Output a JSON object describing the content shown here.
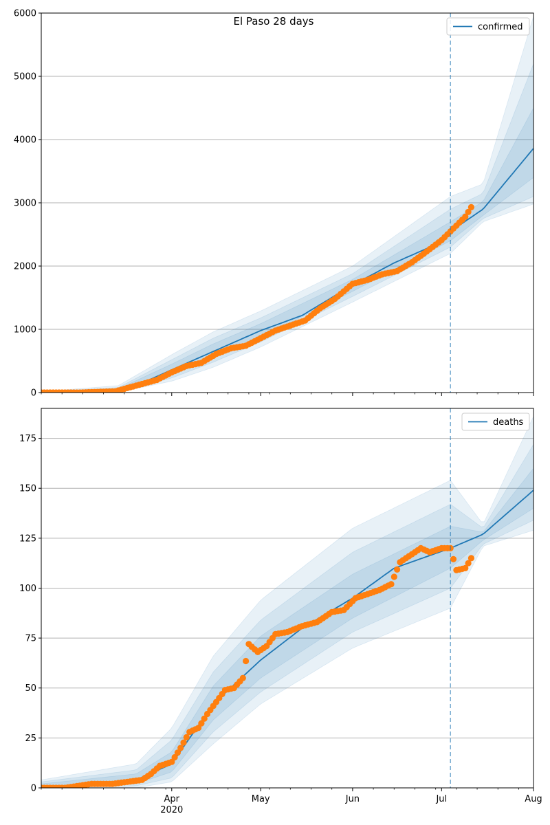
{
  "title": "El Paso 28 days",
  "colors": {
    "line": "#1f77b4",
    "points": "#ff7f0e",
    "band": "#1f77b4",
    "grid": "#b0b0b0",
    "vline": "#1f77b4"
  },
  "x_axis": {
    "start": "2020-02-17",
    "end": "2020-08-01",
    "major_ticks": [
      {
        "date": "2020-04-01",
        "label": "Apr",
        "sublabel": "2020"
      },
      {
        "date": "2020-05-01",
        "label": "May",
        "sublabel": ""
      },
      {
        "date": "2020-06-01",
        "label": "Jun",
        "sublabel": ""
      },
      {
        "date": "2020-07-01",
        "label": "Jul",
        "sublabel": ""
      },
      {
        "date": "2020-08-01",
        "label": "Aug",
        "sublabel": ""
      }
    ],
    "forecast_start": "2020-07-04"
  },
  "chart_data": [
    {
      "type": "line",
      "name": "confirmed",
      "legend": "top-right",
      "grid": "y",
      "ylim": [
        0,
        6000
      ],
      "yticks": [
        0,
        1000,
        2000,
        3000,
        4000,
        5000,
        6000
      ],
      "ytick_labels": [
        "0",
        "1000",
        "2000",
        "3000",
        "4000",
        "5000",
        "6000"
      ],
      "median": [
        {
          "date": "2020-02-17",
          "value": 0
        },
        {
          "date": "2020-03-06",
          "value": 5
        },
        {
          "date": "2020-03-14",
          "value": 30
        },
        {
          "date": "2020-03-22",
          "value": 150
        },
        {
          "date": "2020-04-01",
          "value": 360
        },
        {
          "date": "2020-04-15",
          "value": 650
        },
        {
          "date": "2020-05-01",
          "value": 980
        },
        {
          "date": "2020-05-15",
          "value": 1220
        },
        {
          "date": "2020-06-01",
          "value": 1700
        },
        {
          "date": "2020-06-15",
          "value": 2050
        },
        {
          "date": "2020-07-01",
          "value": 2380
        },
        {
          "date": "2020-07-04",
          "value": 2550
        },
        {
          "date": "2020-07-15",
          "value": 2900
        },
        {
          "date": "2020-08-01",
          "value": 3860
        }
      ],
      "bands": [
        {
          "upper": [
            {
              "date": "2020-02-17",
              "value": 15
            },
            {
              "date": "2020-03-14",
              "value": 110
            },
            {
              "date": "2020-04-01",
              "value": 600
            },
            {
              "date": "2020-04-15",
              "value": 960
            },
            {
              "date": "2020-05-01",
              "value": 1290
            },
            {
              "date": "2020-06-01",
              "value": 2000
            },
            {
              "date": "2020-07-04",
              "value": 3100
            },
            {
              "date": "2020-07-15",
              "value": 3300
            },
            {
              "date": "2020-08-01",
              "value": 5950
            }
          ],
          "lower": [
            {
              "date": "2020-02-17",
              "value": 0
            },
            {
              "date": "2020-03-14",
              "value": 5
            },
            {
              "date": "2020-04-01",
              "value": 180
            },
            {
              "date": "2020-04-15",
              "value": 400
            },
            {
              "date": "2020-05-01",
              "value": 720
            },
            {
              "date": "2020-06-01",
              "value": 1430
            },
            {
              "date": "2020-07-04",
              "value": 2200
            },
            {
              "date": "2020-07-15",
              "value": 2700
            },
            {
              "date": "2020-08-01",
              "value": 2980
            }
          ]
        },
        {
          "upper": [
            {
              "date": "2020-02-17",
              "value": 10
            },
            {
              "date": "2020-03-14",
              "value": 80
            },
            {
              "date": "2020-04-01",
              "value": 520
            },
            {
              "date": "2020-04-15",
              "value": 860
            },
            {
              "date": "2020-05-01",
              "value": 1180
            },
            {
              "date": "2020-06-01",
              "value": 1880
            },
            {
              "date": "2020-07-04",
              "value": 2900
            },
            {
              "date": "2020-07-15",
              "value": 3150
            },
            {
              "date": "2020-08-01",
              "value": 5200
            }
          ],
          "lower": [
            {
              "date": "2020-02-17",
              "value": 0
            },
            {
              "date": "2020-03-14",
              "value": 10
            },
            {
              "date": "2020-04-01",
              "value": 230
            },
            {
              "date": "2020-04-15",
              "value": 480
            },
            {
              "date": "2020-05-01",
              "value": 800
            },
            {
              "date": "2020-06-01",
              "value": 1520
            },
            {
              "date": "2020-07-04",
              "value": 2300
            },
            {
              "date": "2020-07-15",
              "value": 2750
            },
            {
              "date": "2020-08-01",
              "value": 3100
            }
          ]
        },
        {
          "upper": [
            {
              "date": "2020-02-17",
              "value": 6
            },
            {
              "date": "2020-03-14",
              "value": 60
            },
            {
              "date": "2020-04-01",
              "value": 450
            },
            {
              "date": "2020-04-15",
              "value": 770
            },
            {
              "date": "2020-05-01",
              "value": 1090
            },
            {
              "date": "2020-06-01",
              "value": 1790
            },
            {
              "date": "2020-07-04",
              "value": 2700
            },
            {
              "date": "2020-07-15",
              "value": 3020
            },
            {
              "date": "2020-08-01",
              "value": 4500
            }
          ],
          "lower": [
            {
              "date": "2020-02-17",
              "value": 0
            },
            {
              "date": "2020-03-14",
              "value": 15
            },
            {
              "date": "2020-04-01",
              "value": 280
            },
            {
              "date": "2020-04-15",
              "value": 550
            },
            {
              "date": "2020-05-01",
              "value": 870
            },
            {
              "date": "2020-06-01",
              "value": 1600
            },
            {
              "date": "2020-07-04",
              "value": 2400
            },
            {
              "date": "2020-07-15",
              "value": 2800
            },
            {
              "date": "2020-08-01",
              "value": 3400
            }
          ]
        }
      ],
      "points": [
        {
          "date": "2020-02-17",
          "value": 0
        },
        {
          "date": "2020-03-01",
          "value": 0
        },
        {
          "date": "2020-03-13",
          "value": 20
        },
        {
          "date": "2020-03-20",
          "value": 110
        },
        {
          "date": "2020-03-27",
          "value": 200
        },
        {
          "date": "2020-04-01",
          "value": 320
        },
        {
          "date": "2020-04-06",
          "value": 420
        },
        {
          "date": "2020-04-11",
          "value": 470
        },
        {
          "date": "2020-04-16",
          "value": 610
        },
        {
          "date": "2020-04-21",
          "value": 700
        },
        {
          "date": "2020-04-26",
          "value": 740
        },
        {
          "date": "2020-05-01",
          "value": 860
        },
        {
          "date": "2020-05-06",
          "value": 980
        },
        {
          "date": "2020-05-11",
          "value": 1060
        },
        {
          "date": "2020-05-16",
          "value": 1140
        },
        {
          "date": "2020-05-21",
          "value": 1330
        },
        {
          "date": "2020-05-26",
          "value": 1480
        },
        {
          "date": "2020-06-01",
          "value": 1720
        },
        {
          "date": "2020-06-06",
          "value": 1780
        },
        {
          "date": "2020-06-11",
          "value": 1870
        },
        {
          "date": "2020-06-16",
          "value": 1920
        },
        {
          "date": "2020-06-21",
          "value": 2060
        },
        {
          "date": "2020-06-26",
          "value": 2230
        },
        {
          "date": "2020-07-01",
          "value": 2410
        },
        {
          "date": "2020-07-06",
          "value": 2640
        },
        {
          "date": "2020-07-09",
          "value": 2780
        },
        {
          "date": "2020-07-11",
          "value": 2930
        }
      ]
    },
    {
      "type": "line",
      "name": "deaths",
      "legend": "top-right",
      "grid": "y",
      "ylim": [
        0,
        190
      ],
      "yticks": [
        0,
        25,
        50,
        75,
        100,
        125,
        150,
        175
      ],
      "ytick_labels": [
        "0",
        "25",
        "50",
        "75",
        "100",
        "125",
        "150",
        "175"
      ],
      "median": [
        {
          "date": "2020-02-17",
          "value": 0
        },
        {
          "date": "2020-03-10",
          "value": 2
        },
        {
          "date": "2020-03-20",
          "value": 4
        },
        {
          "date": "2020-04-01",
          "value": 12
        },
        {
          "date": "2020-04-15",
          "value": 42
        },
        {
          "date": "2020-05-01",
          "value": 64
        },
        {
          "date": "2020-05-15",
          "value": 80
        },
        {
          "date": "2020-06-01",
          "value": 95
        },
        {
          "date": "2020-06-15",
          "value": 110
        },
        {
          "date": "2020-07-04",
          "value": 120
        },
        {
          "date": "2020-07-15",
          "value": 127
        },
        {
          "date": "2020-08-01",
          "value": 149
        }
      ],
      "bands": [
        {
          "upper": [
            {
              "date": "2020-02-17",
              "value": 4
            },
            {
              "date": "2020-03-20",
              "value": 12
            },
            {
              "date": "2020-04-01",
              "value": 30
            },
            {
              "date": "2020-04-15",
              "value": 66
            },
            {
              "date": "2020-05-01",
              "value": 94
            },
            {
              "date": "2020-06-01",
              "value": 130
            },
            {
              "date": "2020-07-04",
              "value": 154
            },
            {
              "date": "2020-07-15",
              "value": 132
            },
            {
              "date": "2020-08-01",
              "value": 186
            }
          ],
          "lower": [
            {
              "date": "2020-02-17",
              "value": 0
            },
            {
              "date": "2020-03-20",
              "value": 0
            },
            {
              "date": "2020-04-01",
              "value": 3
            },
            {
              "date": "2020-04-15",
              "value": 22
            },
            {
              "date": "2020-05-01",
              "value": 42
            },
            {
              "date": "2020-06-01",
              "value": 70
            },
            {
              "date": "2020-07-04",
              "value": 90
            },
            {
              "date": "2020-07-15",
              "value": 121
            },
            {
              "date": "2020-08-01",
              "value": 129
            }
          ]
        },
        {
          "upper": [
            {
              "date": "2020-02-17",
              "value": 3
            },
            {
              "date": "2020-03-20",
              "value": 9
            },
            {
              "date": "2020-04-01",
              "value": 24
            },
            {
              "date": "2020-04-15",
              "value": 58
            },
            {
              "date": "2020-05-01",
              "value": 84
            },
            {
              "date": "2020-06-01",
              "value": 118
            },
            {
              "date": "2020-07-04",
              "value": 142
            },
            {
              "date": "2020-07-15",
              "value": 130
            },
            {
              "date": "2020-08-01",
              "value": 172
            }
          ],
          "lower": [
            {
              "date": "2020-02-17",
              "value": 0
            },
            {
              "date": "2020-03-20",
              "value": 1
            },
            {
              "date": "2020-04-01",
              "value": 5
            },
            {
              "date": "2020-04-15",
              "value": 28
            },
            {
              "date": "2020-05-01",
              "value": 48
            },
            {
              "date": "2020-06-01",
              "value": 78
            },
            {
              "date": "2020-07-04",
              "value": 100
            },
            {
              "date": "2020-07-15",
              "value": 122
            },
            {
              "date": "2020-08-01",
              "value": 134
            }
          ]
        },
        {
          "upper": [
            {
              "date": "2020-02-17",
              "value": 2
            },
            {
              "date": "2020-03-20",
              "value": 7
            },
            {
              "date": "2020-04-01",
              "value": 18
            },
            {
              "date": "2020-04-15",
              "value": 51
            },
            {
              "date": "2020-05-01",
              "value": 76
            },
            {
              "date": "2020-06-01",
              "value": 107
            },
            {
              "date": "2020-07-04",
              "value": 131
            },
            {
              "date": "2020-07-15",
              "value": 128
            },
            {
              "date": "2020-08-01",
              "value": 160
            }
          ],
          "lower": [
            {
              "date": "2020-02-17",
              "value": 0
            },
            {
              "date": "2020-03-20",
              "value": 2
            },
            {
              "date": "2020-04-01",
              "value": 8
            },
            {
              "date": "2020-04-15",
              "value": 34
            },
            {
              "date": "2020-05-01",
              "value": 55
            },
            {
              "date": "2020-06-01",
              "value": 85
            },
            {
              "date": "2020-07-04",
              "value": 110
            },
            {
              "date": "2020-07-15",
              "value": 124
            },
            {
              "date": "2020-08-01",
              "value": 140
            }
          ]
        }
      ],
      "points": [
        {
          "date": "2020-02-17",
          "value": 0
        },
        {
          "date": "2020-02-25",
          "value": 0
        },
        {
          "date": "2020-03-05",
          "value": 2
        },
        {
          "date": "2020-03-12",
          "value": 2
        },
        {
          "date": "2020-03-17",
          "value": 3
        },
        {
          "date": "2020-03-22",
          "value": 4
        },
        {
          "date": "2020-03-25",
          "value": 7
        },
        {
          "date": "2020-03-28",
          "value": 11
        },
        {
          "date": "2020-04-01",
          "value": 13
        },
        {
          "date": "2020-04-04",
          "value": 20
        },
        {
          "date": "2020-04-07",
          "value": 28
        },
        {
          "date": "2020-04-10",
          "value": 30
        },
        {
          "date": "2020-04-13",
          "value": 37
        },
        {
          "date": "2020-04-16",
          "value": 43
        },
        {
          "date": "2020-04-19",
          "value": 49
        },
        {
          "date": "2020-04-22",
          "value": 50
        },
        {
          "date": "2020-04-25",
          "value": 55
        },
        {
          "date": "2020-04-27",
          "value": 72
        },
        {
          "date": "2020-04-30",
          "value": 68
        },
        {
          "date": "2020-05-03",
          "value": 71
        },
        {
          "date": "2020-05-06",
          "value": 77
        },
        {
          "date": "2020-05-10",
          "value": 78
        },
        {
          "date": "2020-05-15",
          "value": 81
        },
        {
          "date": "2020-05-20",
          "value": 83
        },
        {
          "date": "2020-05-25",
          "value": 88
        },
        {
          "date": "2020-05-29",
          "value": 89
        },
        {
          "date": "2020-06-02",
          "value": 95
        },
        {
          "date": "2020-06-06",
          "value": 97
        },
        {
          "date": "2020-06-10",
          "value": 99
        },
        {
          "date": "2020-06-14",
          "value": 102
        },
        {
          "date": "2020-06-17",
          "value": 113
        },
        {
          "date": "2020-06-20",
          "value": 116
        },
        {
          "date": "2020-06-24",
          "value": 120
        },
        {
          "date": "2020-06-27",
          "value": 118
        },
        {
          "date": "2020-07-01",
          "value": 120
        },
        {
          "date": "2020-07-04",
          "value": 120
        },
        {
          "date": "2020-07-06",
          "value": 109
        },
        {
          "date": "2020-07-09",
          "value": 110
        },
        {
          "date": "2020-07-11",
          "value": 115
        }
      ]
    }
  ]
}
